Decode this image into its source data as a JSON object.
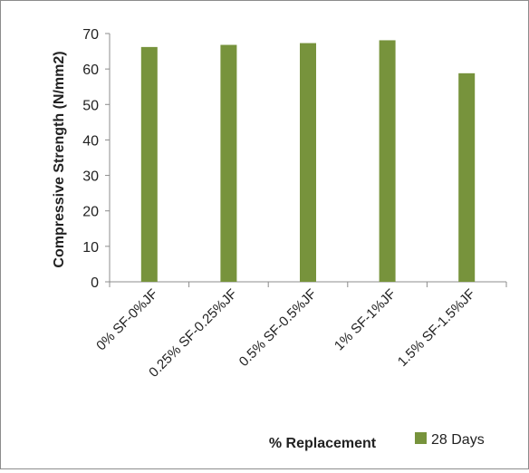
{
  "chart_data": {
    "type": "bar",
    "categories": [
      "0% SF-0%JF",
      "0.25% SF-0.25%JF",
      "0.5% SF-0.5%JF",
      "1% SF-1%JF",
      "1.5% SF-1.5%JF"
    ],
    "series": [
      {
        "name": "28 Days",
        "values": [
          66.2,
          66.8,
          67.3,
          68.1,
          58.8
        ],
        "color": "#77933C"
      }
    ],
    "xlabel": "% Replacement",
    "ylabel": "Compressive Strength (N/mm2)",
    "ylim": [
      0,
      70
    ],
    "yticks": [
      0,
      10,
      20,
      30,
      40,
      50,
      60,
      70
    ],
    "grid": false,
    "legend_position": "bottom-right"
  }
}
